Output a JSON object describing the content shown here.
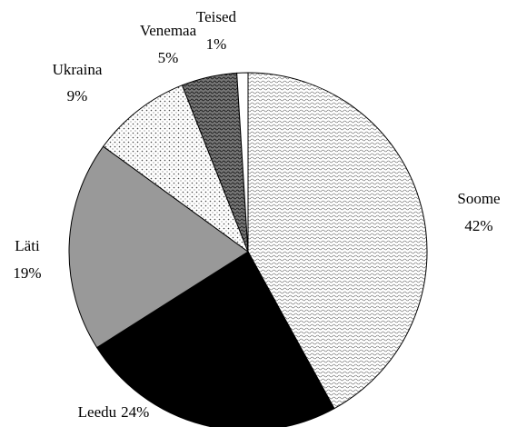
{
  "chart_data": {
    "type": "pie",
    "categories": [
      "Soome",
      "Leedu",
      "Läti",
      "Ukraina",
      "Venemaa",
      "Teised"
    ],
    "values": [
      42,
      24,
      19,
      9,
      5,
      1
    ],
    "value_labels": [
      "42%",
      "24%",
      "19%",
      "9%",
      "5%",
      "1%"
    ],
    "colors": [
      "#e6e6e6",
      "#000000",
      "#999999",
      "#d9d9d9",
      "#6e6e6e",
      "#ffffff"
    ]
  }
}
